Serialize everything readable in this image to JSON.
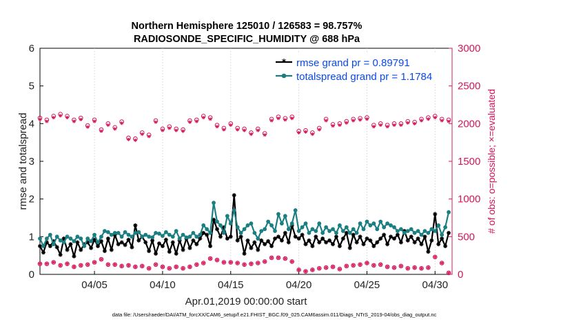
{
  "chart_data": {
    "type": "line",
    "title_line1": "Northern Hemisphere 125010 / 126583 = 98.757%",
    "title_line2": "RADIOSONDE_SPECIFIC_HUMIDITY @ 688 hPa",
    "xlabel": "Apr.01,2019 00:00:00 start",
    "ylabel_left": "rmse and totalspread",
    "ylabel_right": "# of obs: o=possible; ×=evaluated",
    "footer": "data file: /Users/raeder/DAI/ATM_forcXX/CAM6_setup/f.e21.FHIST_BGC.f09_025.CAM6assim.011/Diags_NTrS_2019-04/obs_diag_output.nc",
    "xlim": [
      1,
      31.25
    ],
    "ylim_left": [
      0,
      6
    ],
    "ylim_right": [
      0,
      3000
    ],
    "left_ticks": [
      "0",
      "1",
      "2",
      "3",
      "4",
      "5",
      "6"
    ],
    "right_ticks": [
      "0",
      "500",
      "1000",
      "1500",
      "2000",
      "2500",
      "3000"
    ],
    "x_ticks": [
      {
        "value": 5,
        "label": "04/05"
      },
      {
        "value": 10,
        "label": "04/10"
      },
      {
        "value": 15,
        "label": "04/15"
      },
      {
        "value": 20,
        "label": "04/20"
      },
      {
        "value": 25,
        "label": "04/25"
      },
      {
        "value": 30,
        "label": "04/30"
      }
    ],
    "x": [
      1.0,
      1.25,
      1.5,
      1.75,
      2.0,
      2.25,
      2.5,
      2.75,
      3.0,
      3.25,
      3.5,
      3.75,
      4.0,
      4.25,
      4.5,
      4.75,
      5.0,
      5.25,
      5.5,
      5.75,
      6.0,
      6.25,
      6.5,
      6.75,
      7.0,
      7.25,
      7.5,
      7.75,
      8.0,
      8.25,
      8.5,
      8.75,
      9.0,
      9.25,
      9.5,
      9.75,
      10.0,
      10.25,
      10.5,
      10.75,
      11.0,
      11.25,
      11.5,
      11.75,
      12.0,
      12.25,
      12.5,
      12.75,
      13.0,
      13.25,
      13.5,
      13.75,
      14.0,
      14.25,
      14.5,
      14.75,
      15.0,
      15.25,
      15.5,
      15.75,
      16.0,
      16.25,
      16.5,
      16.75,
      17.0,
      17.25,
      17.5,
      17.75,
      18.0,
      18.25,
      18.5,
      18.75,
      19.0,
      19.25,
      19.5,
      19.75,
      20.0,
      20.25,
      20.5,
      20.75,
      21.0,
      21.25,
      21.5,
      21.75,
      22.0,
      22.25,
      22.5,
      22.75,
      23.0,
      23.25,
      23.5,
      23.75,
      24.0,
      24.25,
      24.5,
      24.75,
      25.0,
      25.25,
      25.5,
      25.75,
      26.0,
      26.25,
      26.5,
      26.75,
      27.0,
      27.25,
      27.5,
      27.75,
      28.0,
      28.25,
      28.5,
      28.75,
      29.0,
      29.25,
      29.5,
      29.75,
      30.0,
      30.25,
      30.5,
      30.75,
      31.0
    ],
    "series": [
      {
        "name": "rmse grand pr = 0.89791",
        "color": "#000000",
        "values": [
          0.75,
          0.58,
          0.85,
          0.75,
          0.88,
          0.72,
          0.52,
          0.95,
          0.65,
          0.8,
          0.48,
          0.85,
          0.65,
          0.8,
          0.85,
          0.7,
          0.92,
          0.75,
          0.88,
          0.62,
          0.95,
          0.65,
          1.05,
          0.8,
          0.85,
          0.78,
          0.92,
          0.72,
          1.3,
          0.9,
          1.0,
          0.85,
          0.62,
          0.9,
          0.55,
          0.82,
          0.75,
          0.92,
          0.6,
          0.85,
          0.55,
          0.9,
          0.65,
          0.95,
          0.7,
          0.9,
          0.8,
          0.95,
          1.1,
          1.05,
          0.75,
          1.45,
          1.2,
          1.0,
          1.25,
          0.95,
          1.0,
          2.1,
          0.9,
          1.0,
          0.55,
          0.9,
          0.7,
          0.85,
          0.65,
          0.9,
          0.8,
          0.88,
          0.75,
          0.95,
          1.0,
          0.9,
          1.1,
          0.85,
          1.3,
          1.0,
          0.95,
          1.05,
          0.8,
          0.9,
          0.75,
          1.0,
          0.85,
          0.95,
          0.85,
          0.9,
          0.8,
          1.0,
          0.75,
          0.95,
          1.1,
          0.7,
          1.05,
          0.85,
          1.0,
          0.8,
          0.95,
          0.9,
          0.75,
          0.85,
          0.95,
          1.05,
          0.8,
          1.0,
          0.95,
          1.05,
          0.85,
          1.15,
          0.9,
          1.0,
          0.85,
          0.95,
          0.8,
          1.0,
          0.6,
          0.9,
          1.6,
          0.8,
          0.95,
          0.75,
          1.1
        ],
        "marker": "star"
      },
      {
        "name": "totalspread grand pr = 1.1784",
        "color": "#1b7f82",
        "values": [
          0.95,
          0.75,
          0.95,
          1.05,
          0.8,
          1.0,
          0.9,
          0.85,
          1.0,
          0.95,
          0.88,
          1.0,
          0.95,
          0.75,
          0.95,
          0.88,
          1.05,
          0.85,
          1.0,
          1.15,
          1.12,
          1.05,
          1.1,
          1.1,
          1.0,
          1.12,
          1.05,
          1.0,
          1.1,
          1.12,
          1.0,
          1.05,
          1.0,
          0.98,
          1.1,
          1.08,
          1.02,
          1.12,
          1.05,
          1.0,
          1.15,
          0.95,
          1.05,
          0.98,
          1.0,
          1.1,
          1.0,
          1.05,
          1.3,
          1.2,
          1.1,
          1.9,
          1.4,
          1.3,
          1.1,
          1.55,
          1.35,
          1.7,
          1.25,
          1.1,
          1.2,
          1.3,
          1.35,
          1.1,
          0.95,
          1.15,
          1.2,
          1.4,
          1.3,
          1.15,
          1.6,
          1.35,
          1.55,
          1.2,
          1.35,
          1.7,
          1.15,
          1.25,
          1.35,
          1.1,
          1.2,
          1.15,
          1.35,
          1.1,
          1.25,
          1.15,
          1.2,
          1.1,
          1.3,
          1.15,
          1.25,
          1.1,
          1.2,
          1.1,
          1.35,
          1.2,
          1.4,
          1.3,
          1.35,
          1.2,
          1.4,
          1.25,
          1.35,
          1.3,
          1.25,
          1.15,
          1.2,
          1.1,
          1.15,
          1.2,
          1.1,
          1.15,
          1.05,
          1.15,
          1.1,
          1.2,
          1.15,
          1.3,
          1.05,
          1.25,
          1.65
        ],
        "marker": "circle"
      }
    ],
    "obs_possible": {
      "name": "o=possible",
      "color": "#d4145a",
      "x": [
        1.0,
        1.5,
        2.0,
        2.5,
        3.0,
        3.5,
        4.0,
        4.5,
        5.0,
        5.5,
        6.0,
        6.5,
        7.0,
        7.5,
        8.0,
        8.5,
        9.0,
        9.5,
        10.0,
        10.5,
        11.0,
        11.5,
        12.0,
        12.5,
        13.0,
        13.5,
        14.0,
        14.5,
        15.0,
        15.5,
        16.0,
        16.5,
        17.0,
        17.5,
        18.0,
        18.5,
        19.0,
        19.5,
        20.0,
        20.5,
        21.0,
        21.5,
        22.0,
        22.5,
        23.0,
        23.5,
        24.0,
        24.5,
        25.0,
        25.5,
        26.0,
        26.5,
        27.0,
        27.5,
        28.0,
        28.5,
        29.0,
        29.5,
        30.0,
        30.5,
        31.0
      ],
      "values": [
        2075,
        2050,
        2100,
        2125,
        2100,
        2050,
        2075,
        1975,
        2050,
        1920,
        2000,
        1950,
        2025,
        1810,
        1800,
        1880,
        1850,
        2040,
        1930,
        1960,
        1930,
        1920,
        2040,
        2050,
        2100,
        2080,
        1980,
        1940,
        2000,
        1940,
        1930,
        1880,
        1930,
        1870,
        2060,
        2090,
        2070,
        2090,
        1900,
        1910,
        1880,
        1940,
        2060,
        1990,
        2000,
        2030,
        2060,
        2070,
        2080,
        1980,
        2000,
        1980,
        2000,
        2000,
        2030,
        2020,
        2060,
        2080,
        2100,
        2060,
        2050
      ]
    },
    "obs_evaluated": {
      "name": "×=evaluated",
      "color": "#d4145a",
      "x": [
        1.0,
        1.5,
        2.0,
        2.5,
        3.0,
        3.5,
        4.0,
        4.5,
        5.0,
        5.5,
        6.0,
        6.5,
        7.0,
        7.5,
        8.0,
        8.5,
        9.0,
        9.5,
        10.0,
        10.5,
        11.0,
        11.5,
        12.0,
        12.5,
        13.0,
        13.5,
        14.0,
        14.5,
        15.0,
        15.5,
        16.0,
        16.5,
        17.0,
        17.5,
        18.0,
        18.5,
        19.0,
        19.5,
        20.0,
        20.5,
        21.0,
        21.5,
        22.0,
        22.5,
        23.0,
        23.5,
        24.0,
        24.5,
        25.0,
        25.5,
        26.0,
        26.5,
        27.0,
        27.5,
        28.0,
        28.5,
        29.0,
        29.5,
        30.0,
        30.5,
        31.0
      ],
      "values": [
        2055,
        2030,
        2080,
        2105,
        2080,
        2030,
        2055,
        1955,
        2030,
        1900,
        1980,
        1930,
        2005,
        1790,
        1780,
        1860,
        1830,
        2020,
        1910,
        1940,
        1910,
        1900,
        2020,
        2030,
        2080,
        2060,
        1960,
        1920,
        1980,
        1920,
        1910,
        1860,
        1910,
        1850,
        2040,
        2070,
        2050,
        2070,
        1880,
        1890,
        1860,
        1920,
        2040,
        1970,
        1980,
        2010,
        2040,
        2050,
        2060,
        1960,
        1980,
        1960,
        1980,
        1980,
        2010,
        2000,
        2040,
        2060,
        2080,
        2040,
        2030
      ]
    },
    "obs_low_possible": {
      "name": "o=possible (low)",
      "color": "#d4145a",
      "x": [
        1.0,
        1.5,
        2.0,
        2.5,
        3.0,
        3.5,
        4.0,
        4.5,
        5.0,
        5.5,
        6.0,
        6.5,
        7.0,
        7.5,
        8.0,
        8.5,
        9.0,
        9.5,
        10.0,
        10.5,
        11.0,
        11.5,
        12.0,
        12.5,
        13.0,
        13.5,
        14.0,
        14.5,
        15.0,
        15.5,
        16.0,
        16.5,
        17.0,
        17.5,
        18.0,
        18.5,
        19.0,
        19.5,
        20.0,
        20.5,
        21.0,
        21.5,
        22.0,
        22.5,
        23.0,
        23.5,
        24.0,
        24.5,
        25.0,
        25.5,
        26.0,
        26.5,
        27.0,
        27.5,
        28.0,
        28.5,
        29.0,
        29.5,
        30.0,
        30.5,
        31.0
      ],
      "values": [
        140,
        140,
        160,
        120,
        140,
        100,
        120,
        130,
        160,
        200,
        130,
        130,
        110,
        120,
        100,
        110,
        80,
        130,
        100,
        80,
        100,
        80,
        100,
        130,
        150,
        210,
        190,
        160,
        160,
        150,
        130,
        140,
        150,
        170,
        220,
        220,
        210,
        170,
        60,
        40,
        60,
        80,
        90,
        100,
        70,
        110,
        120,
        130,
        150,
        120,
        130,
        100,
        90,
        110,
        80,
        90,
        80,
        90,
        230,
        150,
        20
      ]
    }
  },
  "legend": {
    "rmse_label": "rmse grand pr = 0.89791",
    "spread_label": "totalspread grand pr = 1.1784"
  }
}
